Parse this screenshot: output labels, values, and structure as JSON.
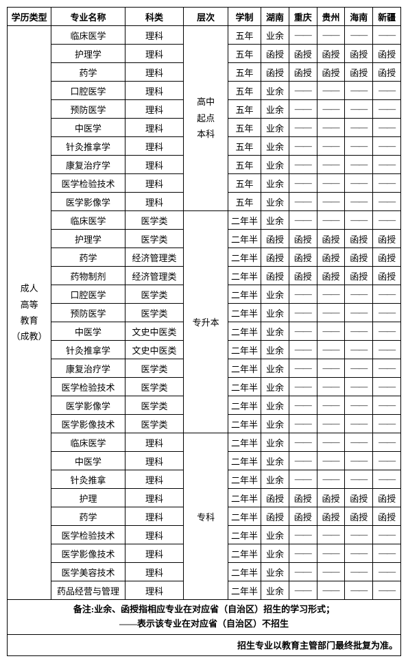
{
  "headers": {
    "type": "学历类型",
    "major": "专业名称",
    "category": "科类",
    "level": "层次",
    "duration": "学制",
    "p1": "湖南",
    "p2": "重庆",
    "p3": "贵州",
    "p4": "海南",
    "p5": "新疆"
  },
  "typeLabel": "成人\n高等\n教育\n（成教）",
  "dash": "——",
  "levels": {
    "l1": "高中\n起点\n本科",
    "l2": "专升本",
    "l3": "专科"
  },
  "rows": [
    {
      "major": "临床医学",
      "category": "理科",
      "duration": "五年",
      "p1": "业余",
      "p2": "——",
      "p3": "——",
      "p4": "——",
      "p5": "——"
    },
    {
      "major": "护理学",
      "category": "理科",
      "duration": "五年",
      "p1": "函授",
      "p2": "函授",
      "p3": "函授",
      "p4": "函授",
      "p5": "函授"
    },
    {
      "major": "药学",
      "category": "理科",
      "duration": "五年",
      "p1": "函授",
      "p2": "函授",
      "p3": "函授",
      "p4": "函授",
      "p5": "函授"
    },
    {
      "major": "口腔医学",
      "category": "理科",
      "duration": "五年",
      "p1": "业余",
      "p2": "——",
      "p3": "——",
      "p4": "——",
      "p5": "——"
    },
    {
      "major": "预防医学",
      "category": "理科",
      "duration": "五年",
      "p1": "业余",
      "p2": "——",
      "p3": "——",
      "p4": "——",
      "p5": "——"
    },
    {
      "major": "中医学",
      "category": "理科",
      "duration": "五年",
      "p1": "业余",
      "p2": "——",
      "p3": "——",
      "p4": "——",
      "p5": "——"
    },
    {
      "major": "针灸推拿学",
      "category": "理科",
      "duration": "五年",
      "p1": "业余",
      "p2": "——",
      "p3": "——",
      "p4": "——",
      "p5": "——"
    },
    {
      "major": "康复治疗学",
      "category": "理科",
      "duration": "五年",
      "p1": "业余",
      "p2": "——",
      "p3": "——",
      "p4": "——",
      "p5": "——"
    },
    {
      "major": "医学检验技术",
      "category": "理科",
      "duration": "五年",
      "p1": "业余",
      "p2": "——",
      "p3": "——",
      "p4": "——",
      "p5": "——"
    },
    {
      "major": "医学影像学",
      "category": "理科",
      "duration": "五年",
      "p1": "业余",
      "p2": "——",
      "p3": "——",
      "p4": "——",
      "p5": "——"
    },
    {
      "major": "临床医学",
      "category": "医学类",
      "duration": "二年半",
      "p1": "业余",
      "p2": "——",
      "p3": "——",
      "p4": "——",
      "p5": "——"
    },
    {
      "major": "护理学",
      "category": "医学类",
      "duration": "二年半",
      "p1": "函授",
      "p2": "函授",
      "p3": "函授",
      "p4": "函授",
      "p5": "函授"
    },
    {
      "major": "药学",
      "category": "经济管理类",
      "duration": "二年半",
      "p1": "函授",
      "p2": "函授",
      "p3": "函授",
      "p4": "函授",
      "p5": "函授"
    },
    {
      "major": "药物制剂",
      "category": "经济管理类",
      "duration": "二年半",
      "p1": "函授",
      "p2": "函授",
      "p3": "函授",
      "p4": "函授",
      "p5": "函授"
    },
    {
      "major": "口腔医学",
      "category": "医学类",
      "duration": "二年半",
      "p1": "业余",
      "p2": "——",
      "p3": "——",
      "p4": "——",
      "p5": "——"
    },
    {
      "major": "预防医学",
      "category": "医学类",
      "duration": "二年半",
      "p1": "业余",
      "p2": "——",
      "p3": "——",
      "p4": "——",
      "p5": "——"
    },
    {
      "major": "中医学",
      "category": "文史中医类",
      "duration": "二年半",
      "p1": "业余",
      "p2": "——",
      "p3": "——",
      "p4": "——",
      "p5": "——"
    },
    {
      "major": "针灸推拿学",
      "category": "文史中医类",
      "duration": "二年半",
      "p1": "业余",
      "p2": "——",
      "p3": "——",
      "p4": "——",
      "p5": "——"
    },
    {
      "major": "康复治疗学",
      "category": "医学类",
      "duration": "二年半",
      "p1": "业余",
      "p2": "——",
      "p3": "——",
      "p4": "——",
      "p5": "——"
    },
    {
      "major": "医学检验技术",
      "category": "医学类",
      "duration": "二年半",
      "p1": "业余",
      "p2": "——",
      "p3": "——",
      "p4": "——",
      "p5": "——"
    },
    {
      "major": "医学影像学",
      "category": "医学类",
      "duration": "二年半",
      "p1": "业余",
      "p2": "——",
      "p3": "——",
      "p4": "——",
      "p5": "——"
    },
    {
      "major": "医学影像技术",
      "category": "医学类",
      "duration": "二年半",
      "p1": "业余",
      "p2": "——",
      "p3": "——",
      "p4": "——",
      "p5": "——"
    },
    {
      "major": "临床医学",
      "category": "理科",
      "duration": "二年半",
      "p1": "业余",
      "p2": "——",
      "p3": "——",
      "p4": "——",
      "p5": "——"
    },
    {
      "major": "中医学",
      "category": "理科",
      "duration": "二年半",
      "p1": "业余",
      "p2": "——",
      "p3": "——",
      "p4": "——",
      "p5": "——"
    },
    {
      "major": "针灸推拿",
      "category": "理科",
      "duration": "二年半",
      "p1": "业余",
      "p2": "——",
      "p3": "——",
      "p4": "——",
      "p5": "——"
    },
    {
      "major": "护理",
      "category": "理科",
      "duration": "二年半",
      "p1": "函授",
      "p2": "函授",
      "p3": "函授",
      "p4": "函授",
      "p5": "函授"
    },
    {
      "major": "药学",
      "category": "理科",
      "duration": "二年半",
      "p1": "函授",
      "p2": "函授",
      "p3": "函授",
      "p4": "函授",
      "p5": "函授"
    },
    {
      "major": "医学检验技术",
      "category": "理科",
      "duration": "二年半",
      "p1": "业余",
      "p2": "——",
      "p3": "——",
      "p4": "——",
      "p5": "——"
    },
    {
      "major": "医学影像技术",
      "category": "理科",
      "duration": "二年半",
      "p1": "业余",
      "p2": "——",
      "p3": "——",
      "p4": "——",
      "p5": "——"
    },
    {
      "major": "医学美容技术",
      "category": "理科",
      "duration": "二年半",
      "p1": "业余",
      "p2": "——",
      "p3": "——",
      "p4": "——",
      "p5": "——"
    },
    {
      "major": "药品经营与管理",
      "category": "理科",
      "duration": "二年半",
      "p1": "业余",
      "p2": "——",
      "p3": "——",
      "p4": "——",
      "p5": "——"
    }
  ],
  "notes": {
    "line1": "备注:业余、函授指相应专业在对应省（自治区）招生的学习形式；",
    "line2": "——表示该专业在对应省（自治区）不招生",
    "final": "招生专业以教育主管部门最终批复为准。"
  },
  "layout": {
    "group1_rowspan": 10,
    "group2_rowspan": 12,
    "group3_rowspan": 9,
    "type_rowspan": 31
  }
}
